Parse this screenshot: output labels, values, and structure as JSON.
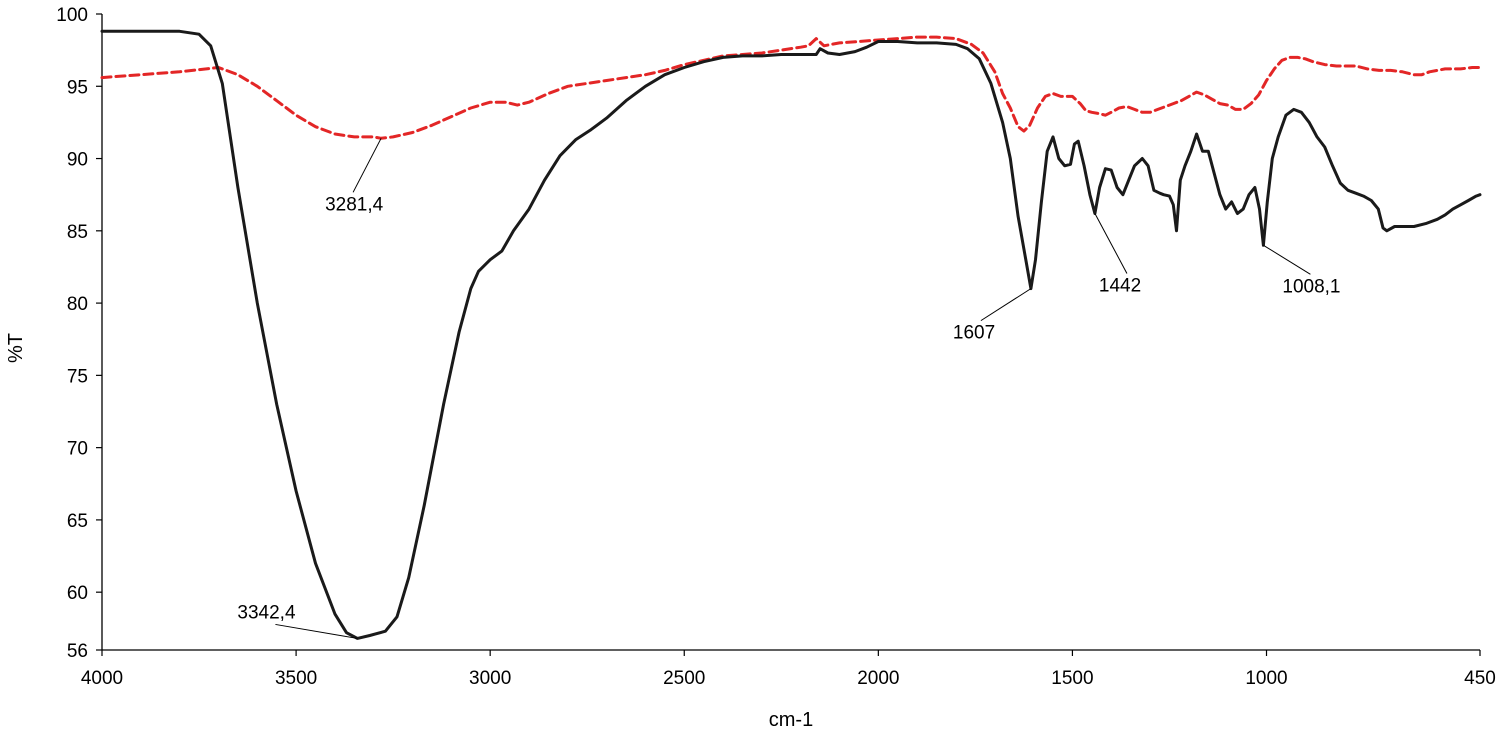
{
  "chart_data": {
    "type": "line",
    "title": "",
    "xlabel": "cm-1",
    "ylabel": "%T",
    "xlim": [
      4000,
      450
    ],
    "ylim": [
      56,
      100
    ],
    "x_reversed": true,
    "grid": false,
    "legend": "none",
    "x_ticks": [
      4000,
      3500,
      3000,
      2500,
      2000,
      1500,
      1000,
      450
    ],
    "y_ticks": [
      56,
      60,
      65,
      70,
      75,
      80,
      85,
      90,
      95,
      100
    ],
    "series": [
      {
        "color": "#1a1a1a",
        "style": "solid",
        "points": [
          [
            4000,
            98.8
          ],
          [
            3900,
            98.8
          ],
          [
            3800,
            98.8
          ],
          [
            3750,
            98.6
          ],
          [
            3720,
            97.8
          ],
          [
            3690,
            95.2
          ],
          [
            3650,
            88
          ],
          [
            3600,
            80
          ],
          [
            3550,
            73
          ],
          [
            3500,
            67
          ],
          [
            3450,
            62
          ],
          [
            3400,
            58.5
          ],
          [
            3370,
            57.2
          ],
          [
            3342,
            56.8
          ],
          [
            3310,
            57.0
          ],
          [
            3270,
            57.3
          ],
          [
            3240,
            58.3
          ],
          [
            3210,
            61
          ],
          [
            3170,
            66
          ],
          [
            3120,
            73
          ],
          [
            3080,
            78
          ],
          [
            3050,
            81
          ],
          [
            3030,
            82.2
          ],
          [
            3000,
            83
          ],
          [
            2970,
            83.6
          ],
          [
            2940,
            85
          ],
          [
            2900,
            86.5
          ],
          [
            2860,
            88.5
          ],
          [
            2820,
            90.2
          ],
          [
            2780,
            91.3
          ],
          [
            2740,
            92
          ],
          [
            2700,
            92.8
          ],
          [
            2650,
            94
          ],
          [
            2600,
            95
          ],
          [
            2550,
            95.8
          ],
          [
            2500,
            96.3
          ],
          [
            2450,
            96.7
          ],
          [
            2400,
            97
          ],
          [
            2350,
            97.1
          ],
          [
            2300,
            97.1
          ],
          [
            2250,
            97.2
          ],
          [
            2200,
            97.2
          ],
          [
            2160,
            97.2
          ],
          [
            2150,
            97.6
          ],
          [
            2130,
            97.3
          ],
          [
            2100,
            97.2
          ],
          [
            2060,
            97.4
          ],
          [
            2030,
            97.7
          ],
          [
            2000,
            98.1
          ],
          [
            1950,
            98.1
          ],
          [
            1900,
            98.0
          ],
          [
            1850,
            98.0
          ],
          [
            1800,
            97.9
          ],
          [
            1770,
            97.6
          ],
          [
            1740,
            96.9
          ],
          [
            1710,
            95.2
          ],
          [
            1680,
            92.5
          ],
          [
            1660,
            90
          ],
          [
            1640,
            86
          ],
          [
            1620,
            83
          ],
          [
            1607,
            81
          ],
          [
            1595,
            83
          ],
          [
            1580,
            87
          ],
          [
            1565,
            90.5
          ],
          [
            1550,
            91.5
          ],
          [
            1535,
            90
          ],
          [
            1520,
            89.5
          ],
          [
            1505,
            89.6
          ],
          [
            1495,
            91
          ],
          [
            1485,
            91.2
          ],
          [
            1470,
            89.5
          ],
          [
            1455,
            87.5
          ],
          [
            1442,
            86.2
          ],
          [
            1430,
            88
          ],
          [
            1415,
            89.3
          ],
          [
            1400,
            89.2
          ],
          [
            1385,
            88
          ],
          [
            1370,
            87.5
          ],
          [
            1355,
            88.5
          ],
          [
            1340,
            89.5
          ],
          [
            1320,
            90
          ],
          [
            1305,
            89.5
          ],
          [
            1290,
            87.8
          ],
          [
            1275,
            87.6
          ],
          [
            1265,
            87.5
          ],
          [
            1250,
            87.4
          ],
          [
            1240,
            86.8
          ],
          [
            1232,
            85
          ],
          [
            1222,
            88.5
          ],
          [
            1210,
            89.5
          ],
          [
            1195,
            90.5
          ],
          [
            1180,
            91.7
          ],
          [
            1165,
            90.5
          ],
          [
            1150,
            90.5
          ],
          [
            1135,
            89
          ],
          [
            1120,
            87.5
          ],
          [
            1105,
            86.5
          ],
          [
            1090,
            87
          ],
          [
            1075,
            86.2
          ],
          [
            1060,
            86.5
          ],
          [
            1045,
            87.5
          ],
          [
            1030,
            88
          ],
          [
            1018,
            86.5
          ],
          [
            1008,
            84
          ],
          [
            998,
            87
          ],
          [
            985,
            90
          ],
          [
            970,
            91.5
          ],
          [
            950,
            93
          ],
          [
            930,
            93.4
          ],
          [
            910,
            93.2
          ],
          [
            890,
            92.5
          ],
          [
            870,
            91.5
          ],
          [
            850,
            90.8
          ],
          [
            830,
            89.5
          ],
          [
            810,
            88.3
          ],
          [
            790,
            87.8
          ],
          [
            770,
            87.6
          ],
          [
            750,
            87.4
          ],
          [
            730,
            87.1
          ],
          [
            712,
            86.5
          ],
          [
            700,
            85.2
          ],
          [
            690,
            85.0
          ],
          [
            670,
            85.3
          ],
          [
            650,
            85.3
          ],
          [
            620,
            85.3
          ],
          [
            590,
            85.5
          ],
          [
            560,
            85.8
          ],
          [
            540,
            86.1
          ],
          [
            520,
            86.5
          ],
          [
            500,
            86.8
          ],
          [
            480,
            87.1
          ],
          [
            460,
            87.4
          ],
          [
            450,
            87.5
          ]
        ]
      },
      {
        "color": "#e32626",
        "style": "dashed",
        "points": [
          [
            4000,
            95.6
          ],
          [
            3900,
            95.8
          ],
          [
            3800,
            96.0
          ],
          [
            3700,
            96.3
          ],
          [
            3650,
            95.8
          ],
          [
            3600,
            95
          ],
          [
            3550,
            94
          ],
          [
            3500,
            93
          ],
          [
            3450,
            92.2
          ],
          [
            3400,
            91.7
          ],
          [
            3350,
            91.5
          ],
          [
            3300,
            91.5
          ],
          [
            3281,
            91.4
          ],
          [
            3250,
            91.5
          ],
          [
            3200,
            91.8
          ],
          [
            3150,
            92.3
          ],
          [
            3100,
            92.9
          ],
          [
            3050,
            93.5
          ],
          [
            3000,
            93.9
          ],
          [
            2960,
            93.9
          ],
          [
            2930,
            93.7
          ],
          [
            2900,
            93.9
          ],
          [
            2850,
            94.5
          ],
          [
            2800,
            95
          ],
          [
            2750,
            95.2
          ],
          [
            2700,
            95.4
          ],
          [
            2600,
            95.8
          ],
          [
            2550,
            96.1
          ],
          [
            2500,
            96.5
          ],
          [
            2450,
            96.8
          ],
          [
            2400,
            97.1
          ],
          [
            2350,
            97.2
          ],
          [
            2300,
            97.3
          ],
          [
            2250,
            97.5
          ],
          [
            2200,
            97.7
          ],
          [
            2180,
            97.8
          ],
          [
            2160,
            98.3
          ],
          [
            2140,
            97.8
          ],
          [
            2100,
            98.0
          ],
          [
            2050,
            98.1
          ],
          [
            2000,
            98.2
          ],
          [
            1950,
            98.3
          ],
          [
            1900,
            98.4
          ],
          [
            1850,
            98.4
          ],
          [
            1800,
            98.3
          ],
          [
            1760,
            97.9
          ],
          [
            1730,
            97.3
          ],
          [
            1700,
            96
          ],
          [
            1680,
            94.5
          ],
          [
            1660,
            93.5
          ],
          [
            1640,
            92.2
          ],
          [
            1625,
            91.9
          ],
          [
            1610,
            92.3
          ],
          [
            1590,
            93.5
          ],
          [
            1570,
            94.3
          ],
          [
            1550,
            94.5
          ],
          [
            1530,
            94.3
          ],
          [
            1500,
            94.3
          ],
          [
            1480,
            93.8
          ],
          [
            1465,
            93.3
          ],
          [
            1450,
            93.2
          ],
          [
            1430,
            93.1
          ],
          [
            1415,
            93.0
          ],
          [
            1400,
            93.2
          ],
          [
            1380,
            93.5
          ],
          [
            1360,
            93.6
          ],
          [
            1340,
            93.4
          ],
          [
            1320,
            93.2
          ],
          [
            1300,
            93.2
          ],
          [
            1280,
            93.4
          ],
          [
            1260,
            93.6
          ],
          [
            1240,
            93.8
          ],
          [
            1220,
            94.0
          ],
          [
            1200,
            94.3
          ],
          [
            1180,
            94.6
          ],
          [
            1160,
            94.4
          ],
          [
            1140,
            94.1
          ],
          [
            1120,
            93.8
          ],
          [
            1100,
            93.7
          ],
          [
            1080,
            93.4
          ],
          [
            1060,
            93.4
          ],
          [
            1040,
            93.8
          ],
          [
            1020,
            94.4
          ],
          [
            1000,
            95.4
          ],
          [
            980,
            96.2
          ],
          [
            960,
            96.8
          ],
          [
            940,
            97.0
          ],
          [
            920,
            97.0
          ],
          [
            900,
            96.9
          ],
          [
            880,
            96.7
          ],
          [
            850,
            96.5
          ],
          [
            820,
            96.4
          ],
          [
            800,
            96.4
          ],
          [
            770,
            96.4
          ],
          [
            740,
            96.2
          ],
          [
            710,
            96.1
          ],
          [
            680,
            96.1
          ],
          [
            650,
            96.0
          ],
          [
            620,
            95.8
          ],
          [
            600,
            95.8
          ],
          [
            580,
            96.0
          ],
          [
            560,
            96.1
          ],
          [
            540,
            96.2
          ],
          [
            500,
            96.2
          ],
          [
            470,
            96.3
          ],
          [
            450,
            96.3
          ]
        ]
      }
    ],
    "annotations": [
      {
        "text": "3342,4",
        "x": 3342,
        "y": 56.8
      },
      {
        "text": "3281,4",
        "x": 3281,
        "y": 91.4
      },
      {
        "text": "1607",
        "x": 1607,
        "y": 81
      },
      {
        "text": "1442",
        "x": 1442,
        "y": 86.2
      },
      {
        "text": "1008,1",
        "x": 1008,
        "y": 84
      }
    ]
  }
}
